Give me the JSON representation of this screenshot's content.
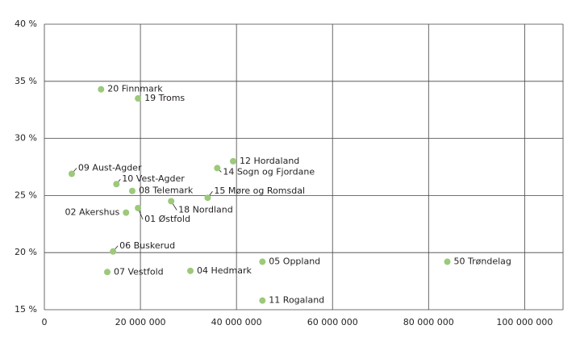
{
  "chart_data": {
    "type": "scatter",
    "color": "#9cc97a",
    "grid": true,
    "labels": [
      "20 Finnmark",
      "19 Troms",
      "09 Aust-Agder",
      "10 Vest-Agder",
      "08 Telemark",
      "02 Akershus",
      "01 Østfold",
      "18 Nordland",
      "15 Møre og Romsdal",
      "12 Hordaland",
      "14 Sogn og Fjordane",
      "06 Buskerud",
      "07 Vestfold",
      "04 Hedmark",
      "05 Oppland",
      "11 Rogaland",
      "50 Trøndelag"
    ],
    "x": [
      11800000,
      19500000,
      5700000,
      15000000,
      18300000,
      17000000,
      19500000,
      26400000,
      34000000,
      39300000,
      36000000,
      14300000,
      13100000,
      30400000,
      45400000,
      45400000,
      83900000
    ],
    "y": [
      34.3,
      33.5,
      26.9,
      26.0,
      25.4,
      23.5,
      23.9,
      24.5,
      24.8,
      28.0,
      27.4,
      20.1,
      18.3,
      18.4,
      19.2,
      15.8,
      19.2
    ],
    "xlim": [
      0,
      108000000
    ],
    "xticks": [
      0,
      {
        "value": 20000000,
        "label": "20 000 000"
      },
      {
        "value": 40000000,
        "label": "40 000 000"
      },
      {
        "value": 60000000,
        "label": "60 000 000"
      },
      {
        "value": 80000000,
        "label": "80 000 000"
      },
      {
        "value": 100000000,
        "label": "100 000 000"
      }
    ],
    "ylim": [
      15,
      40
    ],
    "yticks": [
      {
        "value": 15,
        "label": "15 %"
      },
      {
        "value": 20,
        "label": "20 %"
      },
      {
        "value": 25,
        "label": "25 %"
      },
      {
        "value": 30,
        "label": "30 %"
      },
      {
        "value": 35,
        "label": "35 %"
      },
      {
        "value": 40,
        "label": "40 %"
      }
    ]
  }
}
